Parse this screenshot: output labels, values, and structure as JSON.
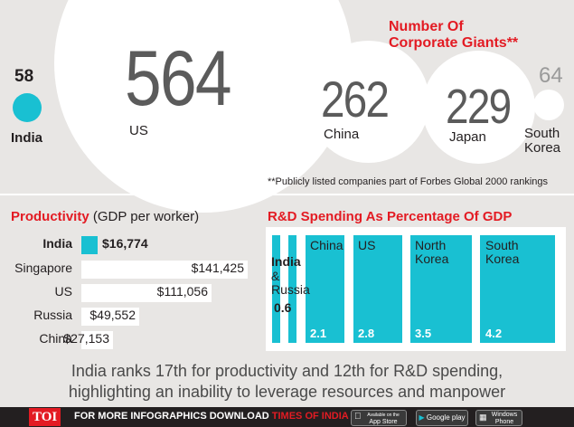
{
  "corporate": {
    "title": "Number Of Corporate Giants**",
    "footnote": "**Publicly listed companies part of Forbes Global 2000 rankings",
    "countries": [
      {
        "name": "India",
        "value": "58"
      },
      {
        "name": "US",
        "value": "564"
      },
      {
        "name": "China",
        "value": "262"
      },
      {
        "name": "Japan",
        "value": "229"
      },
      {
        "name": "South Korea",
        "value": "64"
      }
    ]
  },
  "productivity": {
    "title": "Productivity",
    "subtitle": "(GDP per worker)"
  },
  "rd": {
    "title": "R&D Spending As Percentage Of GDP",
    "india_name": "India",
    "russia_name": "& Russia",
    "shared_value": "0.6"
  },
  "chart_data": [
    {
      "type": "bubble",
      "title": "Number Of Corporate Giants**",
      "categories": [
        "India",
        "US",
        "China",
        "Japan",
        "South Korea"
      ],
      "values": [
        58,
        564,
        262,
        229,
        64
      ]
    },
    {
      "type": "bar",
      "title": "Productivity",
      "subtitle": "(GDP per worker)",
      "categories": [
        "India",
        "Singapore",
        "US",
        "Russia",
        "China"
      ],
      "values": [
        16774,
        141425,
        111056,
        49552,
        27153
      ],
      "labels": [
        "$16,774",
        "$141,425",
        "$111,056",
        "$49,552",
        "$27,153"
      ],
      "highlight": "India",
      "highlight_color": "#19c0d2",
      "bar_color": "#ffffff"
    },
    {
      "type": "bar",
      "title": "R&D Spending As Percentage Of GDP",
      "categories": [
        "India",
        "Russia",
        "China",
        "US",
        "North Korea",
        "South Korea"
      ],
      "values": [
        0.6,
        0.6,
        2.1,
        2.8,
        3.5,
        4.2
      ],
      "labels": [
        "",
        "",
        "2.1",
        "2.8",
        "3.5",
        "4.2"
      ],
      "bar_color": "#19c0d2"
    }
  ],
  "conclusion": {
    "line1": "India ranks 17th for productivity and 12th for R&D spending,",
    "line2": "highlighting an inability to leverage resources and manpower"
  },
  "footer": {
    "logo": "TOI",
    "text_prefix": "FOR MORE  INFOGRAPHICS DOWNLOAD",
    "text_app": "TIMES OF INDIA APP",
    "app_store": "App Store",
    "app_store_small": "Available on the",
    "google_play": "Google play",
    "windows_small": "Windows",
    "windows": "Phone"
  },
  "colors": {
    "accent": "#19c0d2",
    "red": "#e31b23",
    "background": "#e8e6e4",
    "dark": "#231f20"
  }
}
